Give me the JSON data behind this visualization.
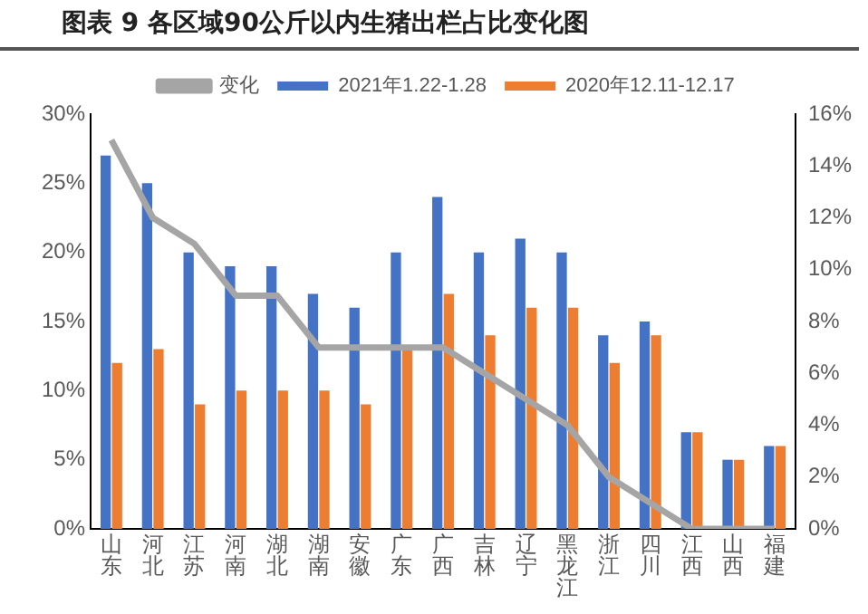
{
  "chart_data": {
    "type": "bar",
    "title": "图表 9 各区域90公斤以内生猪出栏占比变化图",
    "categories": [
      "山东",
      "河北",
      "江苏",
      "河南",
      "湖北",
      "湖南",
      "安徽",
      "广东",
      "广西",
      "吉林",
      "辽宁",
      "黑龙江",
      "浙江",
      "四川",
      "江西",
      "山西",
      "福建"
    ],
    "series": [
      {
        "name": "2021年1.22-1.28",
        "color": "#4472c4",
        "values": [
          27,
          25,
          20,
          19,
          19,
          17,
          16,
          20,
          24,
          20,
          21,
          20,
          14,
          15,
          7,
          5,
          6
        ]
      },
      {
        "name": "2020年12.11-12.17",
        "color": "#ed7d31",
        "values": [
          12,
          13,
          9,
          10,
          10,
          10,
          9,
          13,
          17,
          14,
          16,
          16,
          12,
          14,
          7,
          5,
          6
        ]
      },
      {
        "name": "变化",
        "type": "line",
        "axis": "y2",
        "color": "#a5a5a5",
        "values": [
          15,
          12,
          11,
          9,
          9,
          7,
          7,
          7,
          7,
          6,
          5,
          4,
          2,
          1,
          0,
          0,
          0
        ]
      }
    ],
    "ylim": [
      0,
      30
    ],
    "yticks": [
      {
        "value": 0,
        "label": "0%"
      },
      {
        "value": 5,
        "label": "5%"
      },
      {
        "value": 10,
        "label": "10%"
      },
      {
        "value": 15,
        "label": "15%"
      },
      {
        "value": 20,
        "label": "20%"
      },
      {
        "value": 25,
        "label": "25%"
      },
      {
        "value": 30,
        "label": "30%"
      }
    ],
    "y2lim": [
      0,
      16
    ],
    "y2ticks": [
      {
        "value": 0,
        "label": "0%"
      },
      {
        "value": 2,
        "label": "2%"
      },
      {
        "value": 4,
        "label": "4%"
      },
      {
        "value": 6,
        "label": "6%"
      },
      {
        "value": 8,
        "label": "8%"
      },
      {
        "value": 10,
        "label": "10%"
      },
      {
        "value": 12,
        "label": "12%"
      },
      {
        "value": 14,
        "label": "14%"
      },
      {
        "value": 16,
        "label": "16%"
      }
    ],
    "grid": false,
    "legend": "top",
    "marker": "none"
  }
}
